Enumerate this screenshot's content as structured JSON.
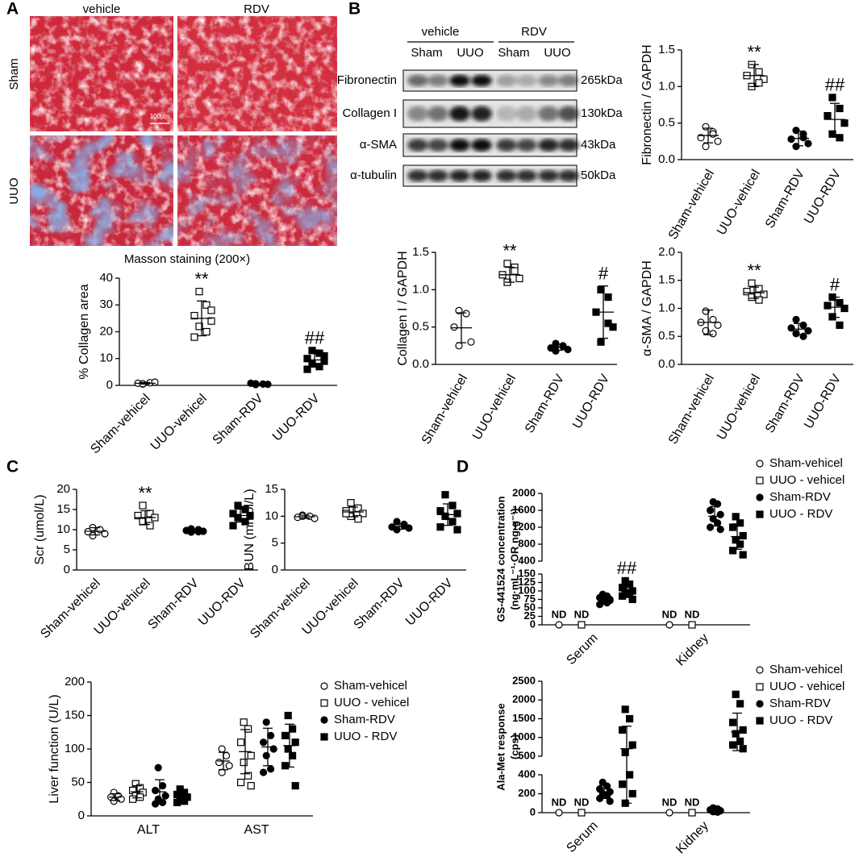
{
  "figure": {
    "panels": [
      "A",
      "B",
      "C",
      "D"
    ],
    "histology": {
      "columns": [
        "vehicle",
        "RDV"
      ],
      "rows": [
        "Sham",
        "UUO"
      ],
      "scale_bar": "100μm",
      "caption": "Masson staining (200×)"
    },
    "blot": {
      "groups": [
        "vehicle",
        "RDV"
      ],
      "lanes": [
        "Sham",
        "UUO",
        "Sham",
        "UUO"
      ],
      "proteins": [
        "Fibronectin",
        "Collagen I",
        "α-SMA",
        "α-tubulin"
      ],
      "sizes": [
        "265kDa",
        "130kDa",
        "43kDa",
        "50kDa"
      ]
    }
  },
  "chart_data": [
    {
      "type": "dotplot",
      "ylabel": "% Collagen area",
      "color": "#000000",
      "categories": [
        "Sham-vehicel",
        "UUO-vehicel",
        "Sham-RDV",
        "UUO-RDV"
      ],
      "markers": [
        "circle-open",
        "square-open",
        "circle",
        "square"
      ],
      "points": [
        [
          0.5,
          1,
          0.8,
          1.2,
          0.6
        ],
        [
          35,
          30,
          26,
          24,
          22,
          20,
          18,
          28
        ],
        [
          0.3,
          0.5,
          0.8,
          0.4,
          0.6
        ],
        [
          13,
          12,
          10,
          9,
          8,
          7,
          6,
          11
        ]
      ],
      "means": [
        0.8,
        25,
        0.5,
        9.5
      ],
      "sds": [
        0.3,
        6.5,
        0.2,
        2.5
      ],
      "annotations": [
        null,
        "**",
        null,
        "##"
      ],
      "ylim": [
        0,
        40
      ],
      "yticks": [
        0,
        10,
        20,
        30,
        40
      ]
    },
    {
      "type": "dotplot",
      "ylabel": "Fibronectin / GAPDH",
      "color": "#000000",
      "categories": [
        "Sham-vehicel",
        "UUO-vehicel",
        "Sham-RDV",
        "UUO-RDV"
      ],
      "markers": [
        "circle-open",
        "square-open",
        "circle",
        "square"
      ],
      "points": [
        [
          0.45,
          0.38,
          0.3,
          0.25,
          0.18,
          0.35
        ],
        [
          1.3,
          1.2,
          1.15,
          1.1,
          1.0,
          1.05
        ],
        [
          0.4,
          0.35,
          0.28,
          0.22,
          0.18,
          0.3
        ],
        [
          0.85,
          0.7,
          0.6,
          0.5,
          0.35,
          0.3
        ]
      ],
      "means": [
        0.33,
        1.15,
        0.29,
        0.55
      ],
      "sds": [
        0.1,
        0.15,
        0.1,
        0.22
      ],
      "annotations": [
        null,
        "**",
        null,
        "##"
      ],
      "ylim": [
        0,
        1.5
      ],
      "yticks": [
        {
          "value": 0,
          "label": "0.0"
        },
        0.5,
        {
          "value": 1,
          "label": "1.0"
        },
        1.5
      ]
    },
    {
      "type": "dotplot",
      "ylabel": "Collagen I / GAPDH",
      "color": "#000000",
      "categories": [
        "Sham-vehicel",
        "UUO-vehicel",
        "Sham-RDV",
        "UUO-RDV"
      ],
      "markers": [
        "circle-open",
        "square-open",
        "circle",
        "square"
      ],
      "points": [
        [
          0.72,
          0.68,
          0.5,
          0.3,
          0.25
        ],
        [
          1.35,
          1.3,
          1.2,
          1.15,
          1.1,
          1.25
        ],
        [
          0.28,
          0.25,
          0.22,
          0.2,
          0.18,
          0.24
        ],
        [
          1.0,
          0.9,
          0.7,
          0.5,
          0.3,
          0.55
        ]
      ],
      "means": [
        0.49,
        1.2,
        0.23,
        0.7
      ],
      "sds": [
        0.2,
        0.1,
        0.04,
        0.35
      ],
      "annotations": [
        null,
        "**",
        null,
        "#"
      ],
      "ylim": [
        0,
        1.5
      ],
      "yticks": [
        {
          "value": 0,
          "label": "0.0"
        },
        0.5,
        {
          "value": 1,
          "label": "1.0"
        },
        1.5
      ]
    },
    {
      "type": "dotplot",
      "ylabel": "α-SMA / GAPDH",
      "color": "#000000",
      "categories": [
        "Sham-vehicel",
        "UUO-vehicel",
        "Sham-RDV",
        "UUO-RDV"
      ],
      "markers": [
        "circle-open",
        "square-open",
        "circle",
        "square"
      ],
      "points": [
        [
          0.95,
          0.8,
          0.75,
          0.7,
          0.6,
          0.55
        ],
        [
          1.45,
          1.35,
          1.3,
          1.25,
          1.2,
          1.15
        ],
        [
          0.8,
          0.7,
          0.65,
          0.6,
          0.55,
          0.5
        ],
        [
          1.2,
          1.1,
          1.05,
          1.0,
          0.85,
          0.7
        ]
      ],
      "means": [
        0.75,
        1.28,
        0.63,
        1.02
      ],
      "sds": [
        0.22,
        0.1,
        0.1,
        0.18
      ],
      "annotations": [
        null,
        "**",
        null,
        "#"
      ],
      "ylim": [
        0,
        2
      ],
      "yticks": [
        {
          "value": 0,
          "label": "0.0"
        },
        0.5,
        {
          "value": 1,
          "label": "1.0"
        },
        1.5,
        {
          "value": 2,
          "label": "2.0"
        }
      ]
    },
    {
      "type": "dotplot",
      "ylabel": "Scr (umol/L)",
      "color": "#000000",
      "categories": [
        "Sham-vehicel",
        "UUO-vehicel",
        "Sham-RDV",
        "UUO-RDV"
      ],
      "markers": [
        "circle-open",
        "square-open",
        "circle",
        "square"
      ],
      "points": [
        [
          10.5,
          10,
          9.5,
          9,
          8.5
        ],
        [
          16,
          14,
          13.5,
          13,
          12,
          11
        ],
        [
          10.2,
          10,
          9.8,
          9.6,
          9.4,
          9.5
        ],
        [
          16,
          15,
          14,
          13.5,
          13,
          12,
          11
        ]
      ],
      "means": [
        9.6,
        13,
        9.7,
        13.5
      ],
      "sds": [
        0.9,
        1.7,
        0.4,
        1.6
      ],
      "annotations": [
        null,
        "**",
        null,
        null
      ],
      "ylim": [
        0,
        20
      ],
      "yticks": [
        0,
        5,
        10,
        15,
        20
      ]
    },
    {
      "type": "dotplot",
      "ylabel": "BUN (mmol/L)",
      "color": "#000000",
      "categories": [
        "Sham-vehicel",
        "UUO-vehicel",
        "Sham-RDV",
        "UUO-RDV"
      ],
      "markers": [
        "circle-open",
        "square-open",
        "circle",
        "square"
      ],
      "points": [
        [
          10.2,
          10,
          9.8,
          9.6,
          10
        ],
        [
          12.5,
          11.5,
          11,
          10.5,
          10,
          9.5,
          10.5
        ],
        [
          9,
          8.5,
          8,
          7.8,
          7.5,
          8.2
        ],
        [
          14,
          12,
          11,
          10.5,
          10,
          9,
          8,
          7.5
        ]
      ],
      "means": [
        9.9,
        10.8,
        8.1,
        10.3
      ],
      "sds": [
        0.3,
        0.9,
        0.5,
        2
      ],
      "annotations": [
        null,
        null,
        null,
        null
      ],
      "ylim": [
        0,
        15
      ],
      "yticks": [
        0,
        5,
        10,
        15
      ]
    },
    {
      "type": "grouped_dotplot",
      "ylabel": "Liver function (U/L)",
      "color": "#000000",
      "legend": "right",
      "categories": [
        "ALT",
        "AST"
      ],
      "series": [
        {
          "name": "Sham-vehicel",
          "marker": "circle-open",
          "points": [
            [
              35,
              30,
              28,
              25,
              22
            ],
            [
              100,
              90,
              80,
              75,
              65
            ]
          ],
          "means": [
            28,
            82
          ],
          "sds": [
            5,
            13
          ]
        },
        {
          "name": "UUO - vehicel",
          "marker": "square-open",
          "points": [
            [
              48,
              42,
              38,
              35,
              30,
              28,
              25
            ],
            [
              140,
              130,
              110,
              90,
              80,
              60,
              50,
              45
            ]
          ],
          "means": [
            36,
            96
          ],
          "sds": [
            9,
            33
          ]
        },
        {
          "name": "Sham-RDV",
          "marker": "circle",
          "points": [
            [
              72,
              45,
              38,
              30,
              25,
              20,
              18
            ],
            [
              140,
              120,
              110,
              100,
              90,
              70,
              65
            ]
          ],
          "means": [
            36,
            103
          ],
          "sds": [
            18,
            28
          ]
        },
        {
          "name": "UUO - RDV",
          "marker": "square",
          "points": [
            [
              40,
              35,
              32,
              28,
              25,
              22,
              20
            ],
            [
              150,
              130,
              120,
              110,
              100,
              90,
              75,
              45
            ]
          ],
          "means": [
            29,
            105
          ],
          "sds": [
            7,
            32
          ]
        }
      ],
      "ylim": [
        0,
        200
      ],
      "yticks": [
        0,
        50,
        100,
        150,
        200
      ]
    },
    {
      "type": "grouped_dotplot",
      "ylabel": [
        "GS-441524 concentration",
        "(ng·mL⁻¹·OR ng·g⁻¹)"
      ],
      "color": "#000000",
      "legend": "right",
      "categories": [
        "Serum",
        "Kidney"
      ],
      "series": [
        {
          "name": "Sham-vehicel",
          "marker": "circle-open",
          "points": [
            [
              0
            ],
            [
              0
            ]
          ],
          "value_labels": [
            [
              "ND"
            ],
            [
              "ND"
            ]
          ],
          "means": [
            null,
            null
          ],
          "sds": [
            null,
            null
          ]
        },
        {
          "name": "UUO - vehicel",
          "marker": "square-open",
          "points": [
            [
              0
            ],
            [
              0
            ]
          ],
          "value_labels": [
            [
              "ND"
            ],
            [
              "ND"
            ]
          ],
          "means": [
            null,
            null
          ],
          "sds": [
            null,
            null
          ]
        },
        {
          "name": "Sham-RDV",
          "marker": "circle",
          "points": [
            [
              90,
              85,
              80,
              75,
              70,
              65,
              60,
              72
            ],
            [
              1800,
              1750,
              1600,
              1500,
              1400,
              1300,
              1200,
              1150
            ]
          ],
          "means": [
            75,
            1460
          ],
          "sds": [
            10,
            230
          ]
        },
        {
          "name": "UUO - RDV",
          "marker": "square",
          "points": [
            [
              130,
              120,
              110,
              100,
              95,
              90,
              85,
              75
            ],
            [
              1450,
              1300,
              1200,
              1000,
              900,
              800,
              650,
              550
            ]
          ],
          "means": [
            100,
            980
          ],
          "sds": [
            18,
            300
          ],
          "annotations": [
            "##",
            null
          ]
        }
      ],
      "segments": [
        {
          "ylim": [
            0,
            150
          ],
          "yticks": [
            0,
            25,
            50,
            75,
            100,
            125,
            150
          ]
        },
        {
          "ylim": [
            400,
            2000
          ],
          "yticks": [
            400,
            800,
            1200,
            1600,
            2000
          ]
        }
      ]
    },
    {
      "type": "grouped_dotplot",
      "ylabel": [
        "Ala-Met response",
        "(cps)"
      ],
      "color": "#000000",
      "legend": "right",
      "categories": [
        "Serum",
        "Kidney"
      ],
      "series": [
        {
          "name": "Sham-vehicel",
          "marker": "circle-open",
          "points": [
            [
              0
            ],
            [
              0
            ]
          ],
          "value_labels": [
            [
              "ND"
            ],
            [
              "ND"
            ]
          ],
          "means": [
            null,
            null
          ],
          "sds": [
            null,
            null
          ]
        },
        {
          "name": "UUO - vehicel",
          "marker": "square-open",
          "points": [
            [
              0
            ],
            [
              0
            ]
          ],
          "value_labels": [
            [
              "ND"
            ],
            [
              "ND"
            ]
          ],
          "means": [
            null,
            null
          ],
          "sds": [
            null,
            null
          ]
        },
        {
          "name": "Sham-RDV",
          "marker": "circle",
          "points": [
            [
              320,
              280,
              250,
              220,
              200,
              180,
              150,
              120
            ],
            [
              50,
              40,
              30,
              20,
              10,
              5
            ]
          ],
          "means": [
            220,
            25
          ],
          "sds": [
            70,
            15
          ]
        },
        {
          "name": "UUO - RDV",
          "marker": "square",
          "points": [
            [
              1750,
              1500,
              1200,
              800,
              600,
              400,
              300,
              200,
              100
            ],
            [
              2150,
              1900,
              1400,
              1200,
              1100,
              900,
              800,
              700
            ]
          ],
          "means": [
            700,
            1150
          ],
          "sds": [
            600,
            500
          ]
        }
      ],
      "segments": [
        {
          "ylim": [
            0,
            400
          ],
          "yticks": [
            0,
            200,
            400
          ]
        },
        {
          "ylim": [
            500,
            2500
          ],
          "yticks": [
            500,
            1000,
            1500,
            2000,
            2500
          ]
        }
      ]
    }
  ]
}
